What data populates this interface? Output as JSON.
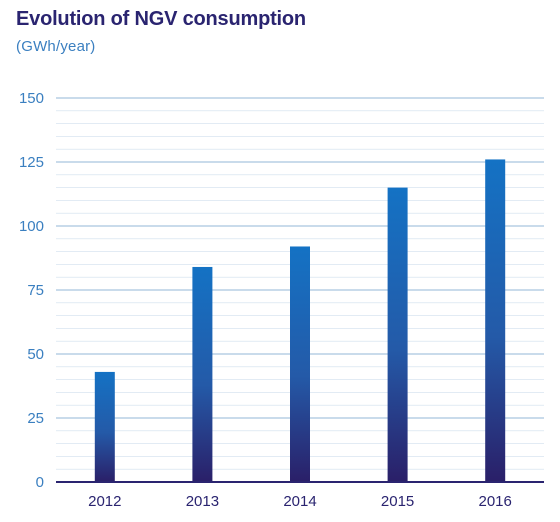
{
  "chart_data": {
    "type": "bar",
    "title": "Evolution of NGV consumption",
    "subtitle": "(GWh/year)",
    "categories": [
      "2012",
      "2013",
      "2014",
      "2015",
      "2016"
    ],
    "values": [
      43,
      84,
      92,
      115,
      126
    ],
    "ylim": [
      0,
      150
    ],
    "yticks": [
      0,
      25,
      50,
      75,
      100,
      125,
      150
    ],
    "grid": true,
    "colors": {
      "bar_top": "#1472c4",
      "bar_bottom": "#2a1f68",
      "grid": "#a9c5df",
      "axis": "#2a2470",
      "ytick_text": "#3a7fc0",
      "xtick_text": "#2a2470"
    }
  }
}
